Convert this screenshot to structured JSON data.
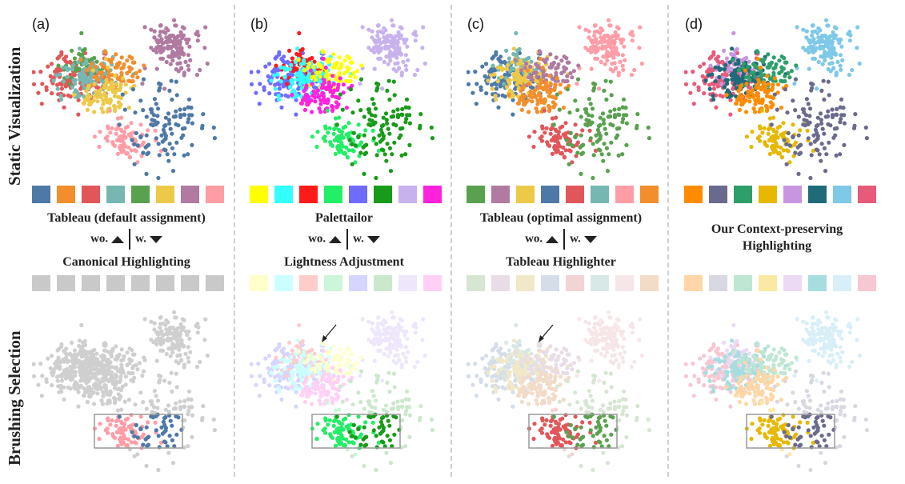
{
  "row_labels": {
    "top": "Static Visualization",
    "bottom": "Brushing Selection"
  },
  "wo_text": "wo.",
  "w_text": "w.",
  "panels": [
    {
      "label": "(a)",
      "caption_top": "Tableau (default assignment)",
      "caption_bottom": "Canonical Highlighting",
      "has_wo": true,
      "palette": [
        "#4e79a7",
        "#f28e2b",
        "#e15759",
        "#76b7b2",
        "#59a14f",
        "#edc948",
        "#b07aa1",
        "#ff9da7"
      ],
      "brush_palette": [
        "#c9c9c9",
        "#c9c9c9",
        "#c9c9c9",
        "#c9c9c9",
        "#c9c9c9",
        "#c9c9c9",
        "#c9c9c9",
        "#c9c9c9"
      ],
      "clusters": [
        6,
        2,
        3,
        4,
        5,
        7,
        0,
        1
      ],
      "grey_bottom": true,
      "arrow": false
    },
    {
      "label": "(b)",
      "caption_top": "Palettailor",
      "caption_bottom": "Lightness Adjustment",
      "has_wo": true,
      "palette": [
        "#ffff00",
        "#33ffff",
        "#ff1a1a",
        "#22ee66",
        "#6f6bff",
        "#1a9a1a",
        "#c8b2ee",
        "#ff22dd"
      ],
      "brush_palette": [
        "#ffffcc",
        "#ccffff",
        "#ffcccc",
        "#ccf5d9",
        "#d6d5ff",
        "#cce8cc",
        "#eee6fa",
        "#ffd0f5"
      ],
      "clusters": [
        6,
        4,
        1,
        2,
        7,
        3,
        5,
        0
      ],
      "grey_bottom": false,
      "arrow": true
    },
    {
      "label": "(c)",
      "caption_top": "Tableau (optimal assignment)",
      "caption_bottom": "Tableau Highlighter",
      "has_wo": true,
      "palette": [
        "#59a14f",
        "#b07aa1",
        "#edc948",
        "#4e79a7",
        "#e15759",
        "#76b7b2",
        "#ff9da7",
        "#f28e2b"
      ],
      "brush_palette": [
        "#d6e6d3",
        "#e8dde6",
        "#f0e8c8",
        "#d4dde8",
        "#f2d4d4",
        "#d8e8e6",
        "#f7e6e8",
        "#f2dcc8"
      ],
      "clusters": [
        6,
        3,
        2,
        5,
        7,
        4,
        0,
        1
      ],
      "grey_bottom": false,
      "arrow": true
    },
    {
      "label": "(d)",
      "caption_top": "Our Context-preserving Highlighting",
      "caption_bottom": "",
      "has_wo": false,
      "palette": [
        "#ff8c00",
        "#6a6a8e",
        "#2e9e6a",
        "#e6b800",
        "#c896e0",
        "#1f6b7a",
        "#7ec8e8",
        "#e85a7a"
      ],
      "brush_palette": [
        "#ffd6a6",
        "#d8d8e2",
        "#bfe6d3",
        "#fbe9a3",
        "#ecd9f3",
        "#a8dde0",
        "#d8eff7",
        "#f7c7d2"
      ],
      "clusters": [
        6,
        7,
        5,
        4,
        0,
        3,
        1,
        2
      ],
      "grey_bottom": false,
      "arrow": false
    }
  ]
}
